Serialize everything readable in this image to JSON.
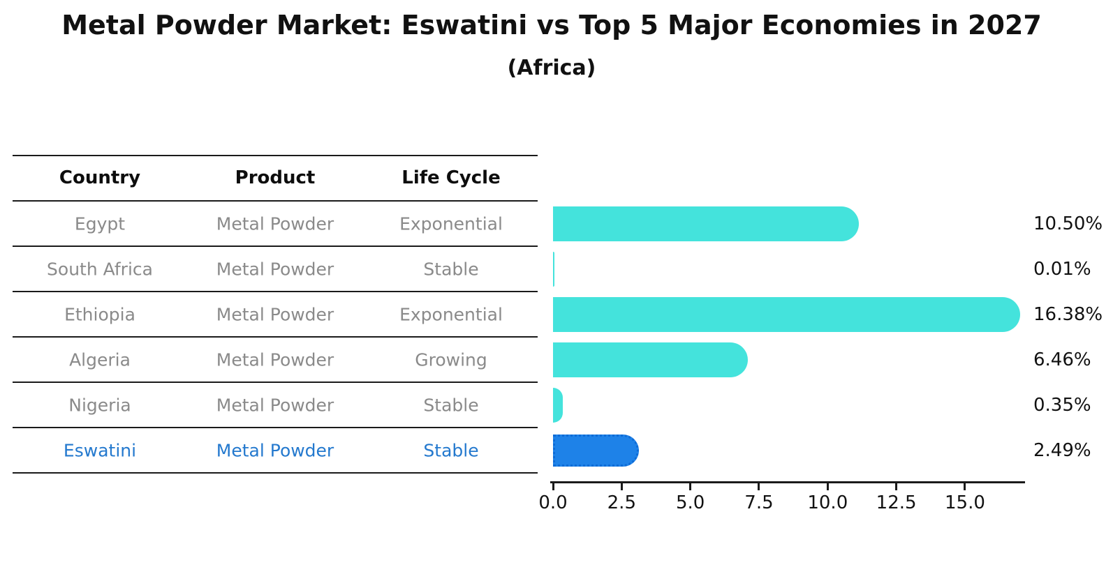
{
  "title": "Metal Powder Market: Eswatini vs Top 5 Major Economies in 2027",
  "subtitle": "(Africa)",
  "table": {
    "headers": [
      "Country",
      "Product",
      "Life Cycle"
    ],
    "rows": [
      {
        "country": "Egypt",
        "product": "Metal Powder",
        "life_cycle": "Exponential",
        "highlight": false
      },
      {
        "country": "South Africa",
        "product": "Metal Powder",
        "life_cycle": "Stable",
        "highlight": false
      },
      {
        "country": "Ethiopia",
        "product": "Metal Powder",
        "life_cycle": "Exponential",
        "highlight": false
      },
      {
        "country": "Algeria",
        "product": "Metal Powder",
        "life_cycle": "Growing",
        "highlight": false
      },
      {
        "country": "Nigeria",
        "product": "Metal Powder",
        "life_cycle": "Stable",
        "highlight": false
      },
      {
        "country": "Eswatini",
        "product": "Metal Powder",
        "life_cycle": "Stable",
        "highlight": true
      }
    ]
  },
  "chart_data": {
    "type": "bar",
    "orientation": "horizontal",
    "categories": [
      "Egypt",
      "South Africa",
      "Ethiopia",
      "Algeria",
      "Nigeria",
      "Eswatini"
    ],
    "values": [
      10.5,
      0.01,
      16.38,
      6.46,
      0.35,
      2.49
    ],
    "value_labels": [
      "10.50%",
      "0.01%",
      "16.38%",
      "6.46%",
      "0.35%",
      "2.49%"
    ],
    "x_tick_labels": [
      "0.0",
      "2.5",
      "5.0",
      "7.5",
      "10.0",
      "12.5",
      "15.0"
    ],
    "x_tick_values": [
      0,
      2.5,
      5,
      7.5,
      10,
      12.5,
      15
    ],
    "xlim": [
      0,
      17.2
    ],
    "grid": false,
    "legend": "none",
    "highlight_category": "Eswatini",
    "colors": {
      "bar": "#44E3DC",
      "highlight_bar": "#1E82E8",
      "highlight_bar_border": "#0E6BD6",
      "highlight_text": "#2479CE",
      "row_text": "#8a8a8a",
      "header_text": "#0d0d0d",
      "axis": "#1a1a1a"
    }
  }
}
